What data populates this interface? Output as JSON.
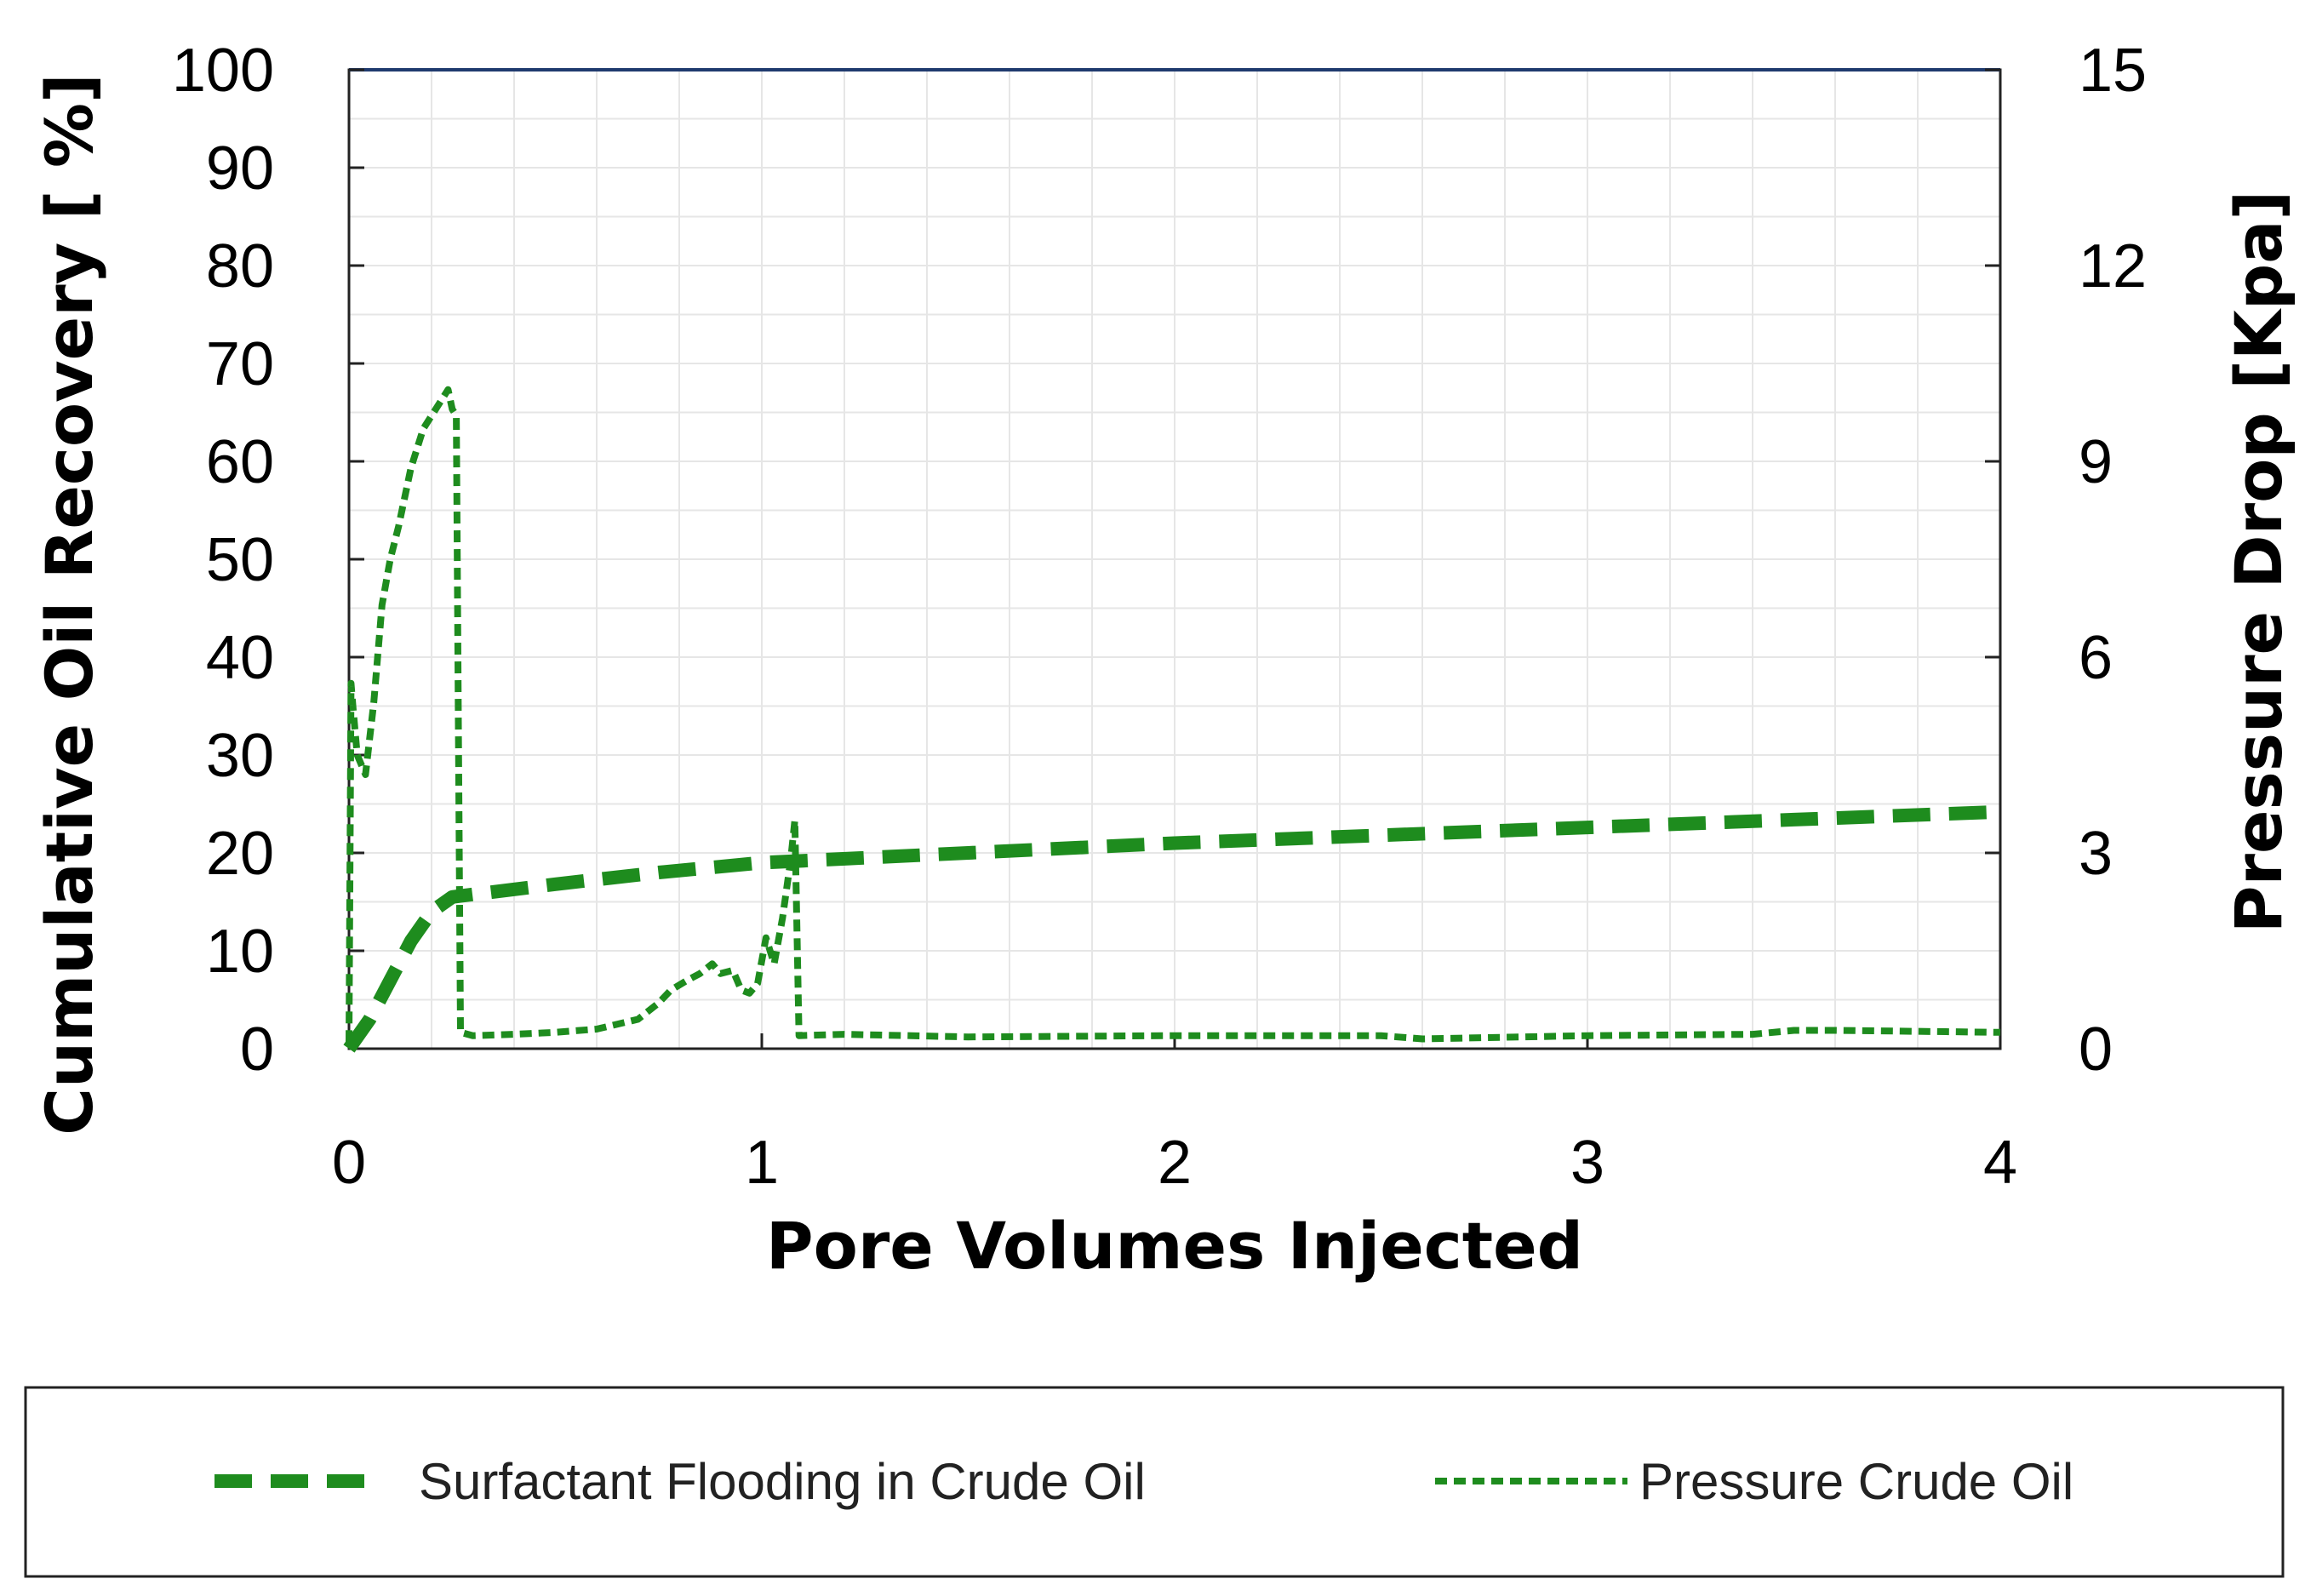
{
  "chart_data": {
    "type": "line",
    "title": "",
    "xlabel": "Pore Volumes Injected",
    "ylabel": "Cumulative Oil Recovery [ %]",
    "y2label": "Pressure Drop [Kpa]",
    "xlim": [
      0,
      4
    ],
    "ylim": [
      0,
      100
    ],
    "y2lim": [
      0,
      15
    ],
    "xticks": [
      "0",
      "1",
      "2",
      "3",
      "4"
    ],
    "yticks": [
      "0",
      "10",
      "20",
      "30",
      "40",
      "50",
      "60",
      "70",
      "80",
      "90",
      "100"
    ],
    "y2ticks": [
      "0",
      "3",
      "6",
      "9",
      "12",
      "15"
    ],
    "grid": true,
    "legend_position": "bottom",
    "series": [
      {
        "name": "Surfactant Flooding in Crude Oil",
        "axis": "left",
        "color": "#1e8c1e",
        "style": "long-dash",
        "x": [
          0,
          0.05,
          0.1,
          0.15,
          0.2,
          0.25,
          0.5,
          0.75,
          1.0,
          1.1,
          1.5,
          2.0,
          2.5,
          3.0,
          3.5,
          4.0
        ],
        "y": [
          0,
          3,
          7,
          11,
          14,
          15.5,
          16.8,
          18,
          19,
          19.2,
          20,
          21,
          21.8,
          22.6,
          23.4,
          24.2
        ]
      },
      {
        "name": "Pressure Crude Oil",
        "axis": "right",
        "color": "#1e8c1e",
        "style": "short-dash",
        "x": [
          0,
          0.005,
          0.01,
          0.02,
          0.04,
          0.06,
          0.08,
          0.1,
          0.12,
          0.15,
          0.18,
          0.21,
          0.24,
          0.25,
          0.26,
          0.265,
          0.27,
          0.3,
          0.4,
          0.5,
          0.6,
          0.7,
          0.75,
          0.78,
          0.82,
          0.85,
          0.88,
          0.9,
          0.93,
          0.95,
          0.97,
          0.99,
          1.01,
          1.03,
          1.05,
          1.07,
          1.08,
          1.09,
          1.2,
          1.5,
          2.0,
          2.5,
          2.6,
          3.0,
          3.4,
          3.5,
          3.6,
          4.0
        ],
        "y": [
          0.1,
          5.6,
          5.2,
          4.5,
          4.2,
          5.3,
          6.8,
          7.5,
          8.0,
          8.9,
          9.5,
          9.8,
          10.1,
          9.8,
          9.7,
          5.0,
          0.25,
          0.2,
          0.22,
          0.25,
          0.3,
          0.45,
          0.7,
          0.9,
          1.05,
          1.15,
          1.3,
          1.15,
          1.2,
          0.9,
          0.85,
          1.0,
          1.7,
          1.3,
          2.0,
          2.9,
          3.5,
          0.2,
          0.22,
          0.18,
          0.2,
          0.2,
          0.15,
          0.2,
          0.22,
          0.28,
          0.28,
          0.25
        ]
      }
    ]
  }
}
